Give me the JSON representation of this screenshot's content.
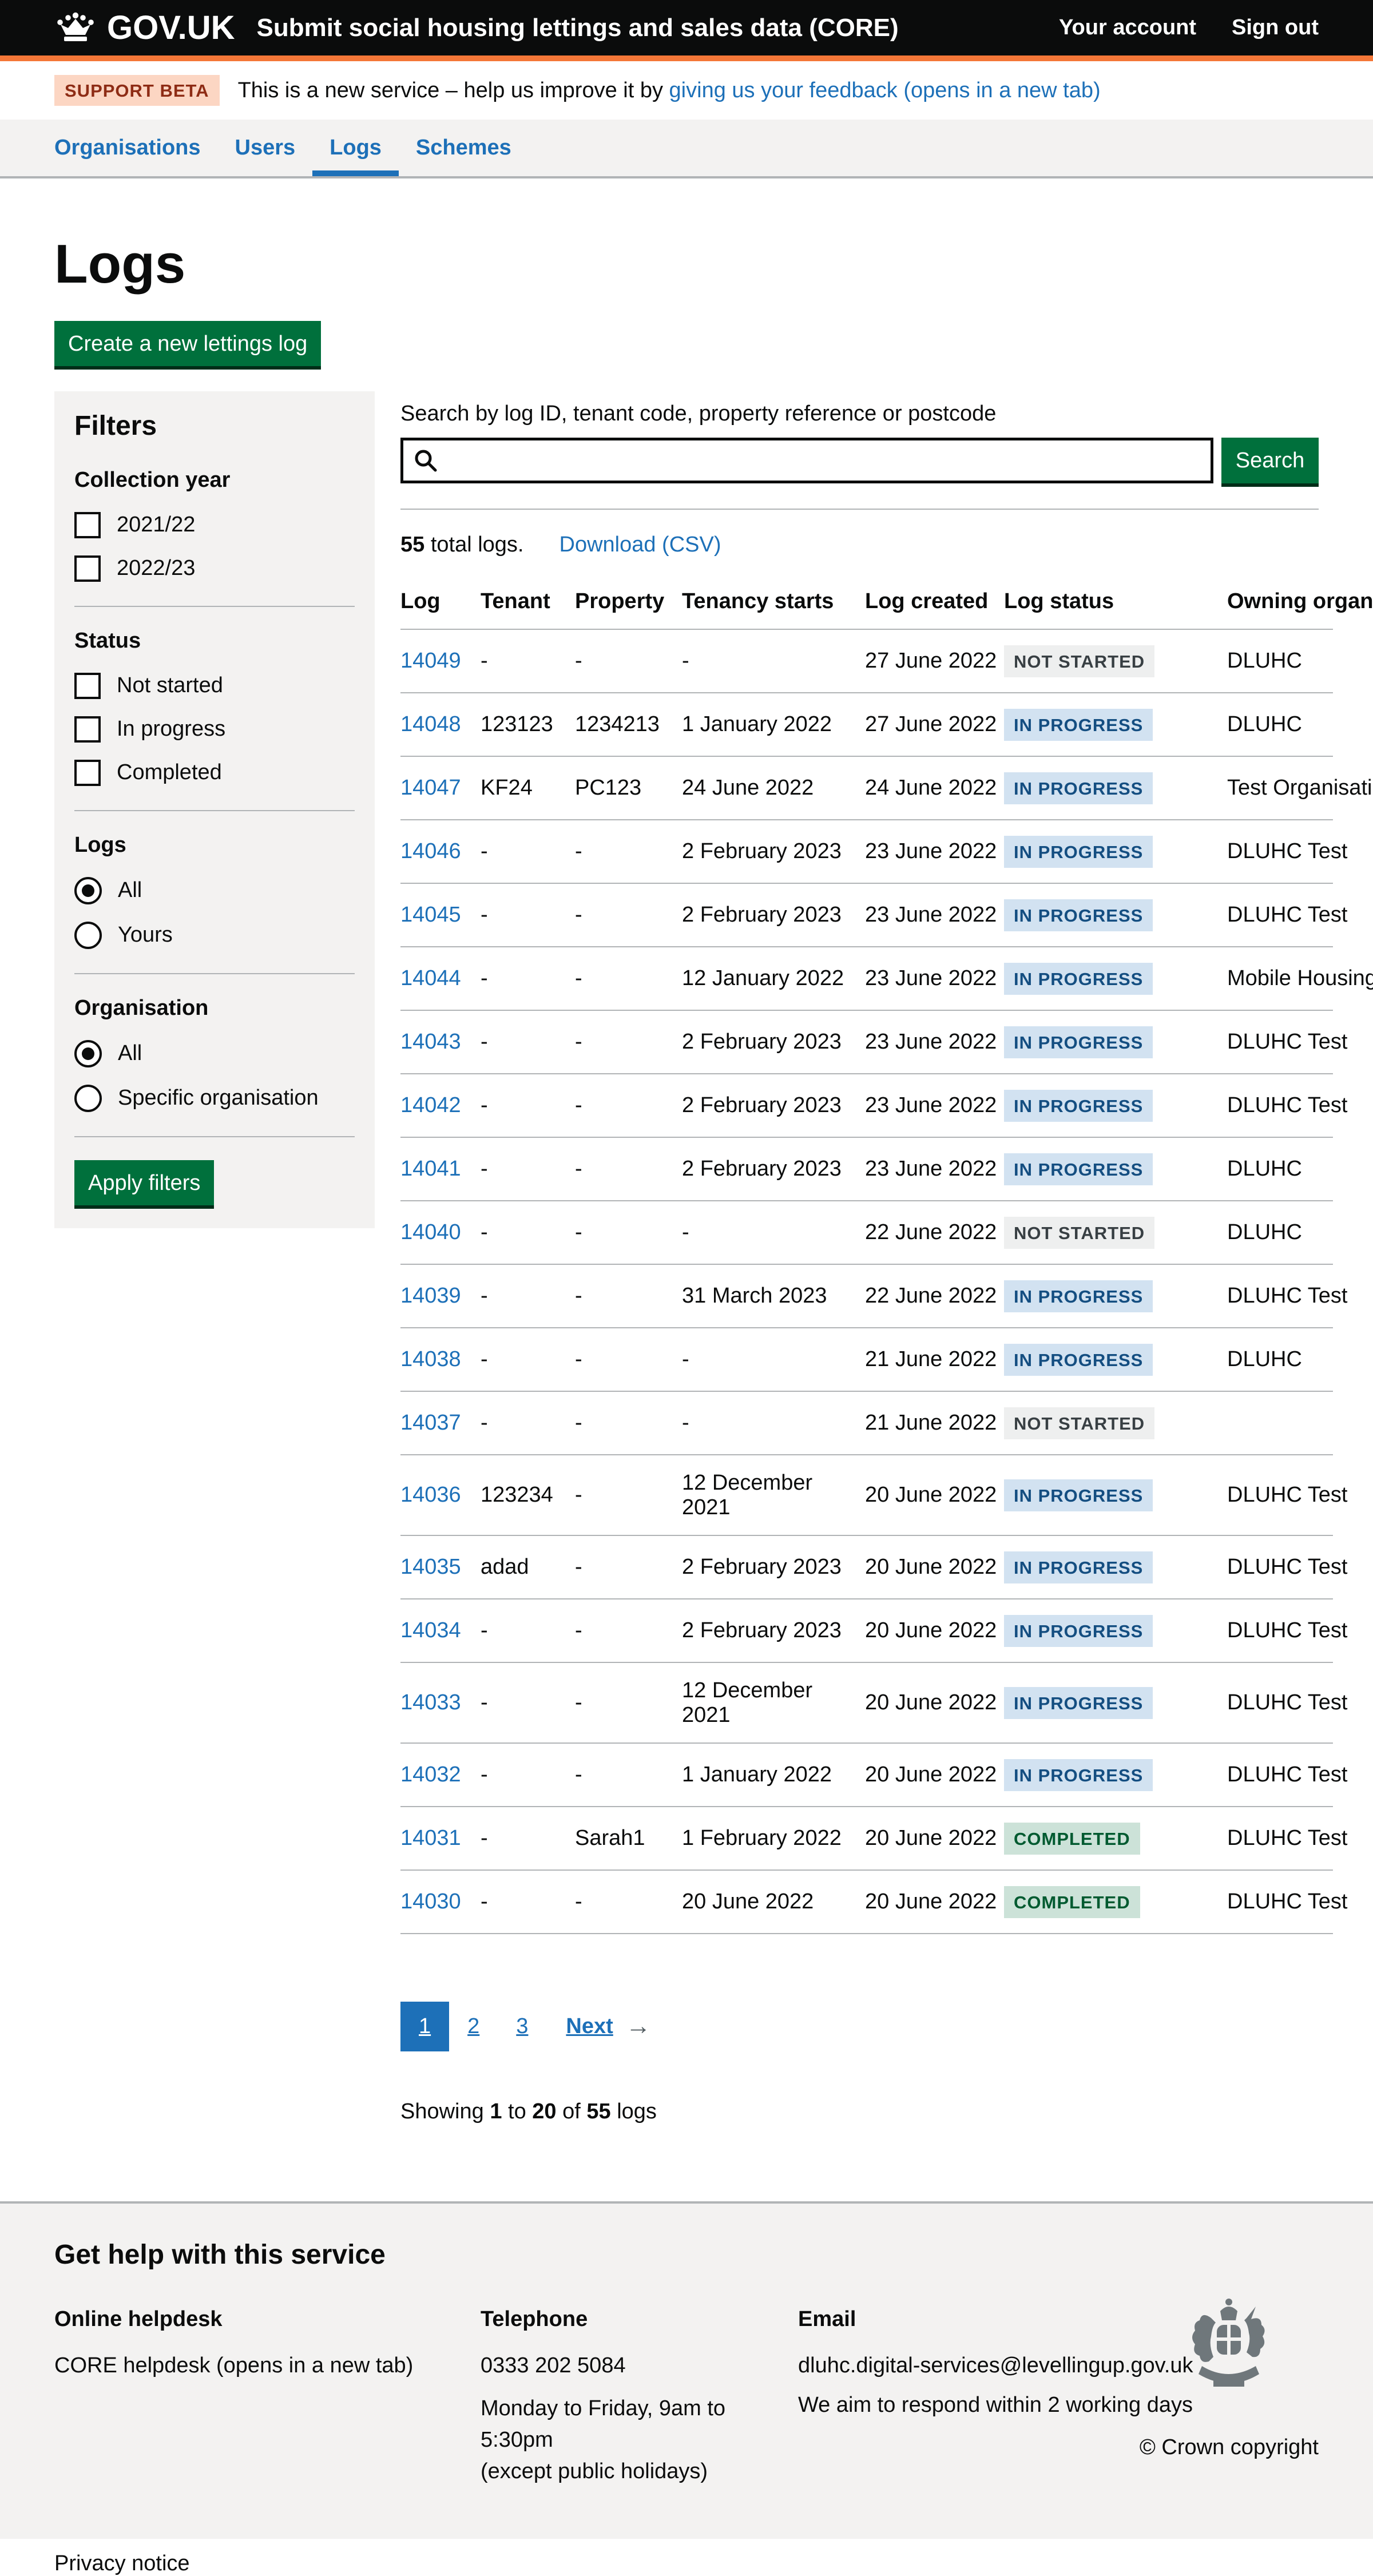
{
  "header": {
    "govuk": "GOV.UK",
    "service_name": "Submit social housing lettings and sales data (CORE)",
    "account_link": "Your account",
    "signout_link": "Sign out"
  },
  "phase": {
    "tag": "SUPPORT BETA",
    "text": "This is a new service – help us improve it by ",
    "link": "giving us your feedback (opens in a new tab)"
  },
  "nav": {
    "items": [
      {
        "label": "Organisations",
        "active": false
      },
      {
        "label": "Users",
        "active": false
      },
      {
        "label": "Logs",
        "active": true
      },
      {
        "label": "Schemes",
        "active": false
      }
    ]
  },
  "page": {
    "title": "Logs",
    "create_button": "Create a new lettings log"
  },
  "filters": {
    "title": "Filters",
    "apply_button": "Apply filters",
    "groups": [
      {
        "label": "Collection year",
        "type": "checkbox",
        "options": [
          {
            "label": "2021/22",
            "checked": false
          },
          {
            "label": "2022/23",
            "checked": false
          }
        ]
      },
      {
        "label": "Status",
        "type": "checkbox",
        "options": [
          {
            "label": "Not started",
            "checked": false
          },
          {
            "label": "In progress",
            "checked": false
          },
          {
            "label": "Completed",
            "checked": false
          }
        ]
      },
      {
        "label": "Logs",
        "type": "radio",
        "options": [
          {
            "label": "All",
            "checked": true
          },
          {
            "label": "Yours",
            "checked": false
          }
        ]
      },
      {
        "label": "Organisation",
        "type": "radio",
        "options": [
          {
            "label": "All",
            "checked": true
          },
          {
            "label": "Specific organisation",
            "checked": false
          }
        ]
      }
    ]
  },
  "search": {
    "label": "Search by log ID, tenant code, property reference or postcode",
    "value": "",
    "button": "Search"
  },
  "results": {
    "total": "55",
    "total_suffix": " total logs.",
    "download": "Download (CSV)"
  },
  "table": {
    "columns": [
      "Log",
      "Tenant",
      "Property",
      "Tenancy starts",
      "Log created",
      "Log status",
      "Owning organisation"
    ],
    "rows": [
      {
        "log": "14049",
        "tenant": "-",
        "property": "-",
        "tenancy_starts": "-",
        "log_created": "27 June 2022",
        "status": "NOT STARTED",
        "status_type": "grey",
        "owning": "DLUHC"
      },
      {
        "log": "14048",
        "tenant": "123123",
        "property": "1234213",
        "tenancy_starts": "1 January 2022",
        "log_created": "27 June 2022",
        "status": "IN PROGRESS",
        "status_type": "blue",
        "owning": "DLUHC"
      },
      {
        "log": "14047",
        "tenant": "KF24",
        "property": "PC123",
        "tenancy_starts": "24 June 2022",
        "log_created": "24 June 2022",
        "status": "IN PROGRESS",
        "status_type": "blue",
        "owning": "Test Organisation"
      },
      {
        "log": "14046",
        "tenant": "-",
        "property": "-",
        "tenancy_starts": "2 February 2023",
        "log_created": "23 June 2022",
        "status": "IN PROGRESS",
        "status_type": "blue",
        "owning": "DLUHC Test"
      },
      {
        "log": "14045",
        "tenant": "-",
        "property": "-",
        "tenancy_starts": "2 February 2023",
        "log_created": "23 June 2022",
        "status": "IN PROGRESS",
        "status_type": "blue",
        "owning": "DLUHC Test"
      },
      {
        "log": "14044",
        "tenant": "-",
        "property": "-",
        "tenancy_starts": "12 January 2022",
        "log_created": "23 June 2022",
        "status": "IN PROGRESS",
        "status_type": "blue",
        "owning": "Mobile Housing"
      },
      {
        "log": "14043",
        "tenant": "-",
        "property": "-",
        "tenancy_starts": "2 February 2023",
        "log_created": "23 June 2022",
        "status": "IN PROGRESS",
        "status_type": "blue",
        "owning": "DLUHC Test"
      },
      {
        "log": "14042",
        "tenant": "-",
        "property": "-",
        "tenancy_starts": "2 February 2023",
        "log_created": "23 June 2022",
        "status": "IN PROGRESS",
        "status_type": "blue",
        "owning": "DLUHC Test"
      },
      {
        "log": "14041",
        "tenant": "-",
        "property": "-",
        "tenancy_starts": "2 February 2023",
        "log_created": "23 June 2022",
        "status": "IN PROGRESS",
        "status_type": "blue",
        "owning": "DLUHC"
      },
      {
        "log": "14040",
        "tenant": "-",
        "property": "-",
        "tenancy_starts": "-",
        "log_created": "22 June 2022",
        "status": "NOT STARTED",
        "status_type": "grey",
        "owning": "DLUHC"
      },
      {
        "log": "14039",
        "tenant": "-",
        "property": "-",
        "tenancy_starts": "31 March 2023",
        "log_created": "22 June 2022",
        "status": "IN PROGRESS",
        "status_type": "blue",
        "owning": "DLUHC Test"
      },
      {
        "log": "14038",
        "tenant": "-",
        "property": "-",
        "tenancy_starts": "-",
        "log_created": "21 June 2022",
        "status": "IN PROGRESS",
        "status_type": "blue",
        "owning": "DLUHC"
      },
      {
        "log": "14037",
        "tenant": "-",
        "property": "-",
        "tenancy_starts": "-",
        "log_created": "21 June 2022",
        "status": "NOT STARTED",
        "status_type": "grey",
        "owning": ""
      },
      {
        "log": "14036",
        "tenant": "123234",
        "property": "-",
        "tenancy_starts": "12 December 2021",
        "log_created": "20 June 2022",
        "status": "IN PROGRESS",
        "status_type": "blue",
        "owning": "DLUHC Test"
      },
      {
        "log": "14035",
        "tenant": "adad",
        "property": "-",
        "tenancy_starts": "2 February 2023",
        "log_created": "20 June 2022",
        "status": "IN PROGRESS",
        "status_type": "blue",
        "owning": "DLUHC Test"
      },
      {
        "log": "14034",
        "tenant": "-",
        "property": "-",
        "tenancy_starts": "2 February 2023",
        "log_created": "20 June 2022",
        "status": "IN PROGRESS",
        "status_type": "blue",
        "owning": "DLUHC Test"
      },
      {
        "log": "14033",
        "tenant": "-",
        "property": "-",
        "tenancy_starts": "12 December 2021",
        "log_created": "20 June 2022",
        "status": "IN PROGRESS",
        "status_type": "blue",
        "owning": "DLUHC Test"
      },
      {
        "log": "14032",
        "tenant": "-",
        "property": "-",
        "tenancy_starts": "1 January 2022",
        "log_created": "20 June 2022",
        "status": "IN PROGRESS",
        "status_type": "blue",
        "owning": "DLUHC Test"
      },
      {
        "log": "14031",
        "tenant": "-",
        "property": "Sarah1",
        "tenancy_starts": "1 February 2022",
        "log_created": "20 June 2022",
        "status": "COMPLETED",
        "status_type": "green",
        "owning": "DLUHC Test"
      },
      {
        "log": "14030",
        "tenant": "-",
        "property": "-",
        "tenancy_starts": "20 June 2022",
        "log_created": "20 June 2022",
        "status": "COMPLETED",
        "status_type": "green",
        "owning": "DLUHC Test"
      }
    ]
  },
  "pagination": {
    "pages": [
      {
        "label": "1",
        "current": true
      },
      {
        "label": "2",
        "current": false
      },
      {
        "label": "3",
        "current": false
      }
    ],
    "next_label": "Next",
    "next_arrow": "→"
  },
  "showing": {
    "word1": "Showing ",
    "from": "1",
    "word2": " to ",
    "to": "20",
    "word3": " of ",
    "total": "55",
    "word4": " logs"
  },
  "footer": {
    "title": "Get help with this service",
    "helpdesk": {
      "title": "Online helpdesk",
      "link": "CORE helpdesk (opens in a new tab)"
    },
    "telephone": {
      "title": "Telephone",
      "number": "0333 202 5084",
      "line1": "Monday to Friday, 9am to 5:30pm",
      "line2": "(except public holidays)"
    },
    "email": {
      "title": "Email",
      "link": "dluhc.digital-services@levellingup.gov.uk",
      "note": "We aim to respond within 2 working days"
    },
    "privacy": "Privacy notice",
    "copyright": "© Crown copyright"
  },
  "colors": {
    "header_bg": "#0b0c0c",
    "accent_orange": "#f47738",
    "link_blue": "#1d70b8",
    "button_green": "#00703c",
    "panel_grey": "#f3f2f1",
    "border_grey": "#b1b4b6",
    "phase_tag_bg": "#fcd6c3",
    "phase_tag_text": "#8e2c15",
    "badge_grey_bg": "#eeefef",
    "badge_grey_text": "#383f43",
    "badge_blue_bg": "#d2e2f1",
    "badge_blue_text": "#144e81",
    "badge_green_bg": "#cce2d8",
    "badge_green_text": "#005a30"
  }
}
